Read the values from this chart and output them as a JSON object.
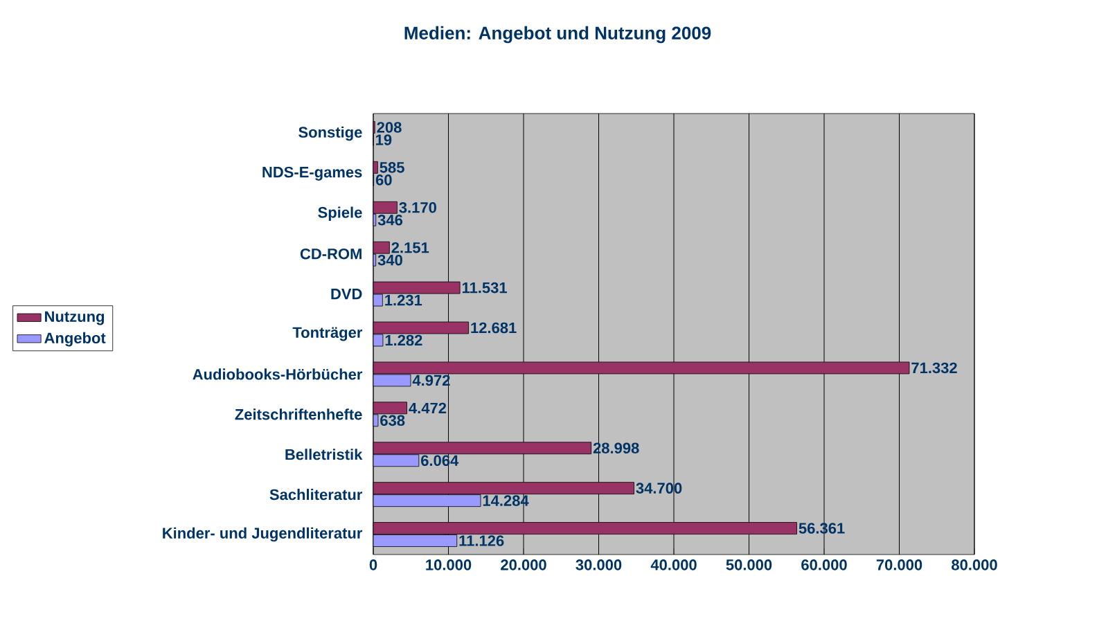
{
  "chart_data": {
    "type": "bar",
    "orientation": "horizontal",
    "title": "Medien: Angebot und Nutzung 2009",
    "categories": [
      "Sonstige",
      "NDS-E-games",
      "Spiele",
      "CD-ROM",
      "DVD",
      "Tonträger",
      "Audiobooks-Hörbücher",
      "Zeitschriftenhefte",
      "Belletristik",
      "Sachliteratur",
      "Kinder- und Jugendliteratur"
    ],
    "series": [
      {
        "name": "Nutzung",
        "color": "#993366",
        "values": [
          208,
          585,
          3170,
          2151,
          11531,
          12681,
          71332,
          4472,
          28998,
          34700,
          56361
        ],
        "value_labels": [
          "208",
          "585",
          "3.170",
          "2.151",
          "11.531",
          "12.681",
          "71.332",
          "4.472",
          "28.998",
          "34.700",
          "56.361"
        ]
      },
      {
        "name": "Angebot",
        "color": "#9999ff",
        "values": [
          19,
          60,
          346,
          340,
          1231,
          1282,
          4972,
          638,
          6064,
          14284,
          11126
        ],
        "value_labels": [
          "19",
          "60",
          "346",
          "340",
          "1.231",
          "1.282",
          "4.972",
          "638",
          "6.064",
          "14.284",
          "11.126"
        ]
      }
    ],
    "xlim": [
      0,
      80000
    ],
    "xticks": [
      0,
      {
        "value": 10000,
        "label": "10.000"
      },
      {
        "value": 20000,
        "label": "20.000"
      },
      {
        "value": 30000,
        "label": "30.000"
      },
      {
        "value": 40000,
        "label": "40.000"
      },
      {
        "value": 50000,
        "label": "50.000"
      },
      {
        "value": 60000,
        "label": "60.000"
      },
      {
        "value": 70000,
        "label": "70.000"
      },
      {
        "value": 80000,
        "label": "80.000"
      }
    ],
    "grid": "x",
    "legend": "left"
  }
}
